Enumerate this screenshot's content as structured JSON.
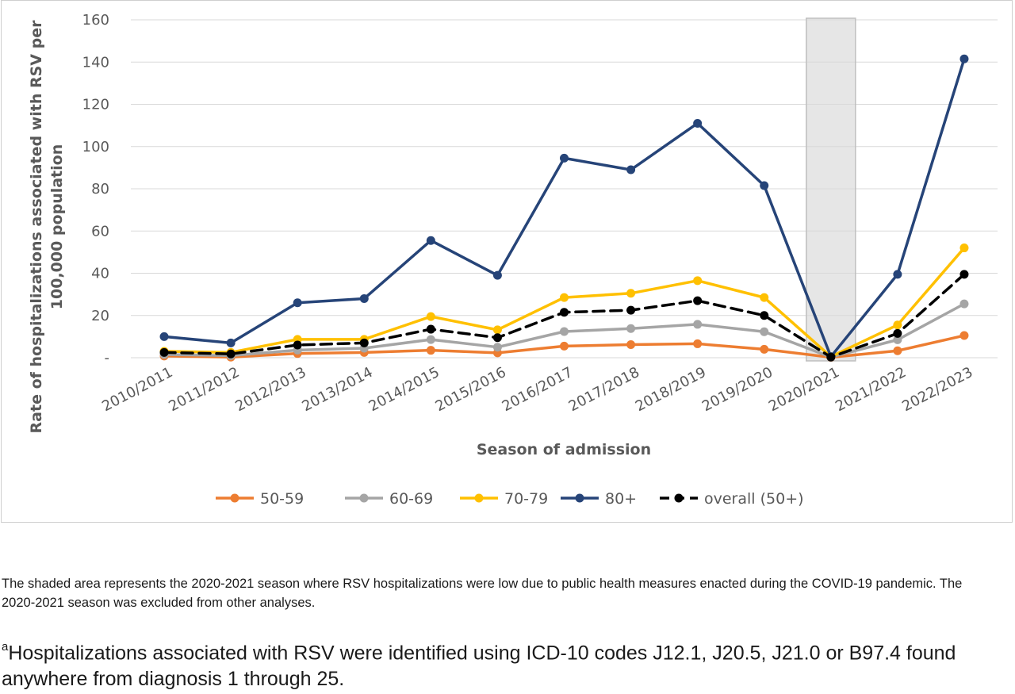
{
  "chart_data": {
    "type": "line",
    "ylabel": "Rate of hospitalizations associated with RSV per 100,000 population",
    "ylabel_lines": [
      "Rate of hospitalizations associated with RSV per",
      "100,000 population"
    ],
    "xlabel": "Season of admission",
    "ylim": [
      0,
      160
    ],
    "y_ticks": [
      "-",
      "20",
      "40",
      "60",
      "80",
      "100",
      "120",
      "140",
      "160"
    ],
    "y_tick_values": [
      0,
      20,
      40,
      60,
      80,
      100,
      120,
      140,
      160
    ],
    "grid": "horizontal",
    "legend_position": "bottom",
    "shaded_category": "2020/2021",
    "categories": [
      "2010/2011",
      "2011/2012",
      "2012/2013",
      "2013/2014",
      "2014/2015",
      "2015/2016",
      "2016/2017",
      "2017/2018",
      "2018/2019",
      "2019/2020",
      "2020/2021",
      "2021/2022",
      "2022/2023"
    ],
    "series": [
      {
        "name": "50-59",
        "color": "#ed7d31",
        "dashed": false,
        "values": [
          0.8,
          0.3,
          2.0,
          2.5,
          3.5,
          2.3,
          5.5,
          6.2,
          6.6,
          4.0,
          0.2,
          3.3,
          10.5
        ]
      },
      {
        "name": "60-69",
        "color": "#a5a5a5",
        "dashed": false,
        "values": [
          1.5,
          1.0,
          3.6,
          4.5,
          8.6,
          5.0,
          12.4,
          13.8,
          15.8,
          12.3,
          0.3,
          8.5,
          25.5
        ]
      },
      {
        "name": "70-79",
        "color": "#ffc000",
        "dashed": false,
        "values": [
          3.0,
          2.5,
          8.7,
          8.7,
          19.5,
          13.2,
          28.5,
          30.5,
          36.5,
          28.5,
          0.5,
          15.5,
          52.0
        ]
      },
      {
        "name": "80+",
        "color": "#264478",
        "dashed": false,
        "values": [
          10.0,
          7.0,
          26.0,
          28.0,
          55.5,
          39.0,
          94.5,
          89.0,
          111.0,
          81.5,
          0.5,
          39.5,
          141.5
        ]
      },
      {
        "name": "overall (50+)",
        "color": "#000000",
        "dashed": true,
        "values": [
          2.5,
          1.8,
          6.0,
          7.0,
          13.5,
          9.5,
          21.5,
          22.5,
          27.0,
          20.0,
          0.3,
          11.5,
          39.5
        ]
      }
    ]
  },
  "notes": {
    "caption": "The shaded area represents the 2020-2021 season where RSV hospitalizations were low due to public health measures enacted during the COVID-19 pandemic. The 2020-2021 season was excluded from other analyses.",
    "footnote_marker": "a",
    "footnote_text": "Hospitalizations associated with RSV were identified using ICD-10 codes J12.1, J20.5, J21.0 or B97.4 found anywhere from diagnosis 1 through 25."
  }
}
